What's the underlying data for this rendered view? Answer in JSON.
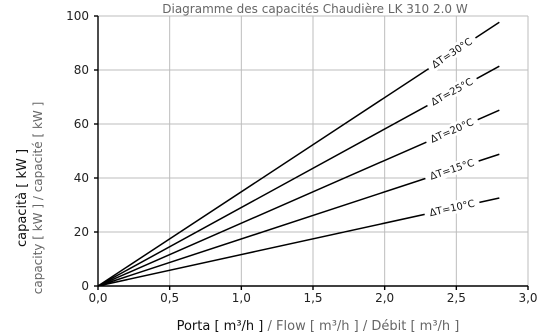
{
  "chart_data": {
    "type": "line",
    "title": "Diagramme des capacités Chaudière LK 310 2.0 W",
    "ylabel_main": "capacità  [ kW ]",
    "ylabel_sub": "capacity  [ kW ] / capacité  [ kW ]",
    "xlabel_main": "Porta  [ m³/h ]",
    "xlabel_sub": " / Flow  [ m³/h ] / Débit [ m³/h ]",
    "xlim": [
      0,
      3.0
    ],
    "ylim": [
      0,
      100
    ],
    "xticks": [
      0,
      0.5,
      1.0,
      1.5,
      2.0,
      2.5,
      3.0
    ],
    "xtick_labels": [
      "0,0",
      "0,5",
      "1,0",
      "1,5",
      "2,0",
      "2,5",
      "3,0"
    ],
    "yticks": [
      0,
      20,
      40,
      60,
      80,
      100
    ],
    "ytick_labels": [
      "0",
      "20",
      "40",
      "60",
      "80",
      "100"
    ],
    "grid": true,
    "series": [
      {
        "name": "ΔT=30°C",
        "x": [
          0,
          2.8
        ],
        "y": [
          0,
          97.7
        ]
      },
      {
        "name": "ΔT=25°C",
        "x": [
          0,
          2.8
        ],
        "y": [
          0,
          81.4
        ]
      },
      {
        "name": "ΔT=20°C",
        "x": [
          0,
          2.8
        ],
        "y": [
          0,
          65.1
        ]
      },
      {
        "name": "ΔT=15°C",
        "x": [
          0,
          2.8
        ],
        "y": [
          0,
          48.8
        ]
      },
      {
        "name": "ΔT=10°C",
        "x": [
          0,
          2.8
        ],
        "y": [
          0,
          32.6
        ]
      }
    ]
  }
}
